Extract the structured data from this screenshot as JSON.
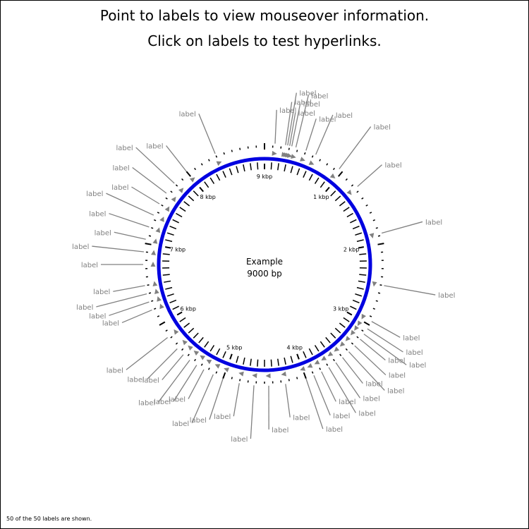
{
  "header": {
    "line1": "Point to labels to view mouseover information.",
    "line2": "Click on labels to test hyperlinks."
  },
  "map": {
    "title": "Example",
    "length_text": "9000 bp",
    "length_bp": 9000,
    "backbone_color": "#0000e0",
    "label_color": "#808080",
    "ticks": [
      "1 kbp",
      "2 kbp",
      "3 kbp",
      "4 kbp",
      "5 kbp",
      "6 kbp",
      "7 kbp",
      "8 kbp",
      "9 kbp"
    ],
    "feature_label_text": "label",
    "feature_count": 50
  },
  "footer": {
    "text": "50 of the 50 labels are shown."
  }
}
